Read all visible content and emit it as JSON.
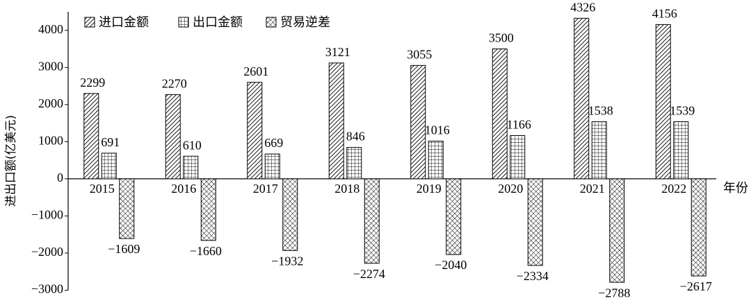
{
  "chart_data": {
    "type": "bar",
    "y_label": "进出口额(亿美元)",
    "x_label": "年份",
    "categories": [
      "2015",
      "2016",
      "2017",
      "2018",
      "2019",
      "2020",
      "2021",
      "2022"
    ],
    "series": [
      {
        "name": "进口金额",
        "color": "#000000",
        "pattern": "diagonal",
        "values": [
          2299,
          2270,
          2601,
          3121,
          3055,
          3500,
          4326,
          4156
        ]
      },
      {
        "name": "出口金额",
        "color": "#000000",
        "pattern": "grid",
        "values": [
          691,
          610,
          669,
          846,
          1016,
          1166,
          1538,
          1539
        ]
      },
      {
        "name": "贸易逆差",
        "color": "#000000",
        "pattern": "diamond",
        "values": [
          -1609,
          -1660,
          -1932,
          -2274,
          -2040,
          -2334,
          -2788,
          -2617
        ],
        "value_labels": [
          "−1609",
          "−1660",
          "−1932",
          "−2274",
          "−2040",
          "−2334",
          "−2788",
          "−2617"
        ]
      }
    ],
    "ylim": [
      -3000,
      4500
    ],
    "yticks": [
      {
        "value": -3000,
        "label": "−3000"
      },
      {
        "value": -2000,
        "label": "−2000"
      },
      {
        "value": -1000,
        "label": "−1000"
      },
      0,
      1000,
      2000,
      3000,
      4000
    ],
    "legend": "top-left",
    "grid": false
  }
}
